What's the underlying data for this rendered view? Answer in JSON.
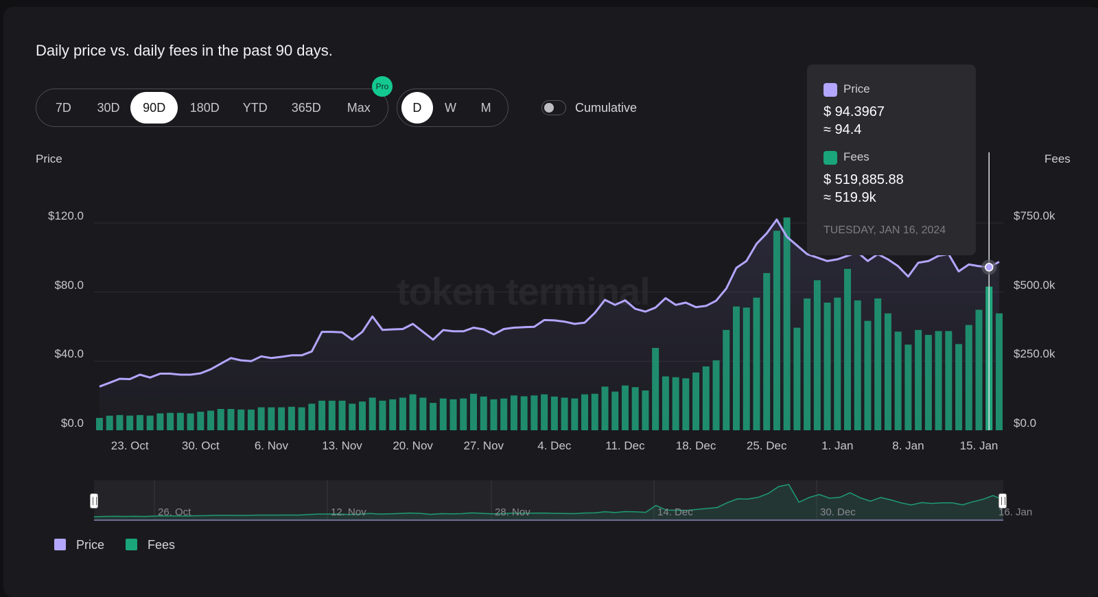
{
  "title": "Daily price vs. daily fees in the past 90 days.",
  "range_options": [
    "7D",
    "30D",
    "90D",
    "180D",
    "YTD",
    "365D",
    "Max"
  ],
  "range_selected": "90D",
  "pro_badge": "Pro",
  "granularity_options": [
    "D",
    "W",
    "M"
  ],
  "granularity_selected": "D",
  "cumulative": {
    "label": "Cumulative",
    "on": false
  },
  "watermark": "token terminal",
  "colors": {
    "price": "#b3a6ff",
    "fees": "#1f8c6d",
    "background": "#1a1a1e"
  },
  "tooltip": {
    "price_label": "Price",
    "price_value": "$ 94.3967",
    "price_approx": "≈ 94.4",
    "fees_label": "Fees",
    "fees_value": "$ 519,885.88",
    "fees_approx": "≈ 519.9k",
    "date": "TUESDAY, JAN 16, 2024"
  },
  "legend": [
    {
      "label": "Price",
      "icon": "purple-square"
    },
    {
      "label": "Fees",
      "icon": "green-square"
    }
  ],
  "navigator": {
    "labels": [
      "26. Oct",
      "12. Nov",
      "28. Nov",
      "14. Dec",
      "30. Dec",
      "16. Jan"
    ]
  },
  "chart_data": {
    "type": "bar+line",
    "left_axis": {
      "title": "Price",
      "ticks": [
        "$0.0",
        "$40.0",
        "$80.0",
        "$120.0"
      ],
      "ylim": [
        0,
        120
      ]
    },
    "right_axis": {
      "title": "Fees",
      "ticks": [
        "$0.0",
        "$250.0k",
        "$500.0k",
        "$750.0k"
      ],
      "ylim": [
        0,
        750000
      ]
    },
    "x_ticks": [
      "23. Oct",
      "30. Oct",
      "6. Nov",
      "13. Nov",
      "20. Nov",
      "27. Nov",
      "4. Dec",
      "11. Dec",
      "18. Dec",
      "25. Dec",
      "1. Jan",
      "8. Jan",
      "15. Jan"
    ],
    "grid": true,
    "legend_position": "bottom-left",
    "x": [
      "2023-10-20",
      "2023-10-21",
      "2023-10-22",
      "2023-10-23",
      "2023-10-24",
      "2023-10-25",
      "2023-10-26",
      "2023-10-27",
      "2023-10-28",
      "2023-10-29",
      "2023-10-30",
      "2023-10-31",
      "2023-11-01",
      "2023-11-02",
      "2023-11-03",
      "2023-11-04",
      "2023-11-05",
      "2023-11-06",
      "2023-11-07",
      "2023-11-08",
      "2023-11-09",
      "2023-11-10",
      "2023-11-11",
      "2023-11-12",
      "2023-11-13",
      "2023-11-14",
      "2023-11-15",
      "2023-11-16",
      "2023-11-17",
      "2023-11-18",
      "2023-11-19",
      "2023-11-20",
      "2023-11-21",
      "2023-11-22",
      "2023-11-23",
      "2023-11-24",
      "2023-11-25",
      "2023-11-26",
      "2023-11-27",
      "2023-11-28",
      "2023-11-29",
      "2023-11-30",
      "2023-12-01",
      "2023-12-02",
      "2023-12-03",
      "2023-12-04",
      "2023-12-05",
      "2023-12-06",
      "2023-12-07",
      "2023-12-08",
      "2023-12-09",
      "2023-12-10",
      "2023-12-11",
      "2023-12-12",
      "2023-12-13",
      "2023-12-14",
      "2023-12-15",
      "2023-12-16",
      "2023-12-17",
      "2023-12-18",
      "2023-12-19",
      "2023-12-20",
      "2023-12-21",
      "2023-12-22",
      "2023-12-23",
      "2023-12-24",
      "2023-12-25",
      "2023-12-26",
      "2023-12-27",
      "2023-12-28",
      "2023-12-29",
      "2023-12-30",
      "2023-12-31",
      "2024-01-01",
      "2024-01-02",
      "2024-01-03",
      "2024-01-04",
      "2024-01-05",
      "2024-01-06",
      "2024-01-07",
      "2024-01-08",
      "2024-01-09",
      "2024-01-10",
      "2024-01-11",
      "2024-01-12",
      "2024-01-13",
      "2024-01-14",
      "2024-01-15",
      "2024-01-16",
      "2024-01-17"
    ],
    "series": [
      {
        "name": "Price",
        "type": "line",
        "axis": "left",
        "values": [
          25.3,
          27.5,
          29.8,
          29.6,
          32.2,
          30.5,
          32.8,
          32.8,
          32.2,
          32.2,
          33,
          35.3,
          38.6,
          41.8,
          40.5,
          40,
          42.8,
          41.8,
          42.5,
          43.4,
          43.4,
          45.6,
          57,
          57,
          56.7,
          52.5,
          57,
          65.9,
          58.1,
          58.4,
          58.6,
          61.6,
          57,
          52.5,
          58,
          57.3,
          57.3,
          59.4,
          58.4,
          55.5,
          58.6,
          59.4,
          59.7,
          59.9,
          63.8,
          63.6,
          62.9,
          61.6,
          62.3,
          68,
          75.5,
          72.6,
          75.2,
          70.3,
          68.7,
          71,
          76.5,
          72.6,
          73.9,
          71.3,
          72,
          75,
          82,
          94,
          98,
          108,
          114,
          122,
          112,
          107,
          102,
          100,
          98,
          99,
          101,
          103,
          98,
          102,
          99,
          95,
          89,
          97,
          98,
          101,
          102,
          92,
          96,
          95,
          94.3967,
          97.5
        ]
      },
      {
        "name": "Fees",
        "type": "bar",
        "axis": "right",
        "values": [
          44600,
          52700,
          55000,
          53000,
          55000,
          53000,
          61000,
          63000,
          63000,
          61000,
          67000,
          71000,
          77000,
          77000,
          75000,
          75000,
          83000,
          83000,
          83000,
          85000,
          83000,
          96000,
          107000,
          107000,
          107000,
          96000,
          104000,
          118000,
          107000,
          112000,
          118000,
          130000,
          118000,
          99000,
          115000,
          112000,
          115000,
          132000,
          122000,
          112000,
          115000,
          126000,
          123000,
          126000,
          130000,
          122000,
          118000,
          115000,
          130000,
          132000,
          158000,
          140000,
          162000,
          156000,
          144000,
          298000,
          195000,
          192000,
          188000,
          209000,
          231000,
          253000,
          363000,
          448000,
          444000,
          480000,
          569000,
          722000,
          770000,
          371000,
          477000,
          543000,
          462000,
          480000,
          584000,
          470000,
          396000,
          477000,
          423000,
          357000,
          310000,
          363000,
          345000,
          359000,
          359000,
          312000,
          381000,
          436000,
          519885.88,
          423000
        ]
      }
    ]
  }
}
